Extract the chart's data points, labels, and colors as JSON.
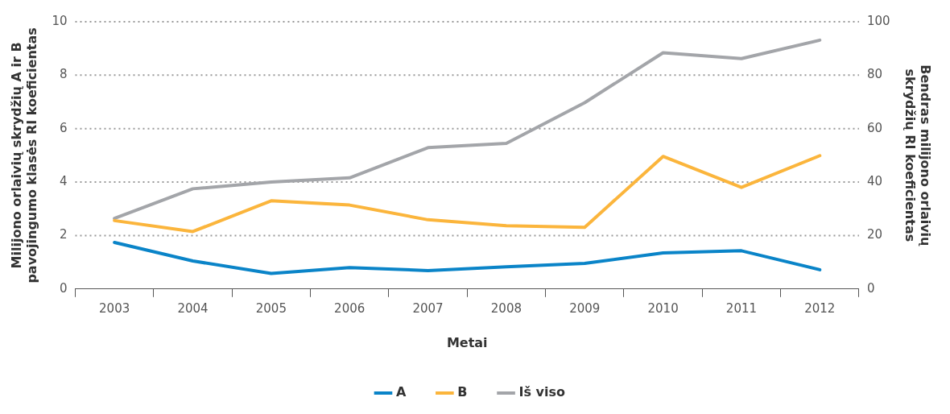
{
  "chart_data": {
    "type": "line",
    "xlabel": "Metai",
    "ylabel": "Milijono orlaivių skrydžių A ir B\npavojingumo klasės RI koeficientas",
    "y2label": "Bendras milijono orlaivių\nskrydžių RI koeficientas",
    "categories": [
      "2003",
      "2004",
      "2005",
      "2006",
      "2007",
      "2008",
      "2009",
      "2010",
      "2011",
      "2012"
    ],
    "series": [
      {
        "name": "A",
        "color": "#0a84c8",
        "values": [
          1.74,
          1.05,
          0.58,
          0.8,
          0.69,
          0.83,
          0.96,
          1.35,
          1.43,
          0.72
        ]
      },
      {
        "name": "B",
        "color": "#fbb53c",
        "values": [
          2.56,
          2.15,
          3.3,
          3.14,
          2.59,
          2.37,
          2.31,
          4.96,
          3.8,
          4.99
        ]
      },
      {
        "name": "Iš viso",
        "color": "#a3a5a9",
        "axis": "y2",
        "values": [
          26.4,
          37.5,
          40,
          41.6,
          52.9,
          54.5,
          69.7,
          88.4,
          86.2,
          93.1
        ]
      }
    ],
    "ylim": [
      0,
      10
    ],
    "yticks": [
      0,
      2,
      4,
      6,
      8,
      10
    ],
    "y2lim": [
      0,
      100
    ],
    "y2ticks": [
      0,
      20,
      40,
      60,
      80,
      100
    ],
    "grid": "y",
    "legend": "bottom",
    "marker": "none",
    "line_style": "solid"
  }
}
